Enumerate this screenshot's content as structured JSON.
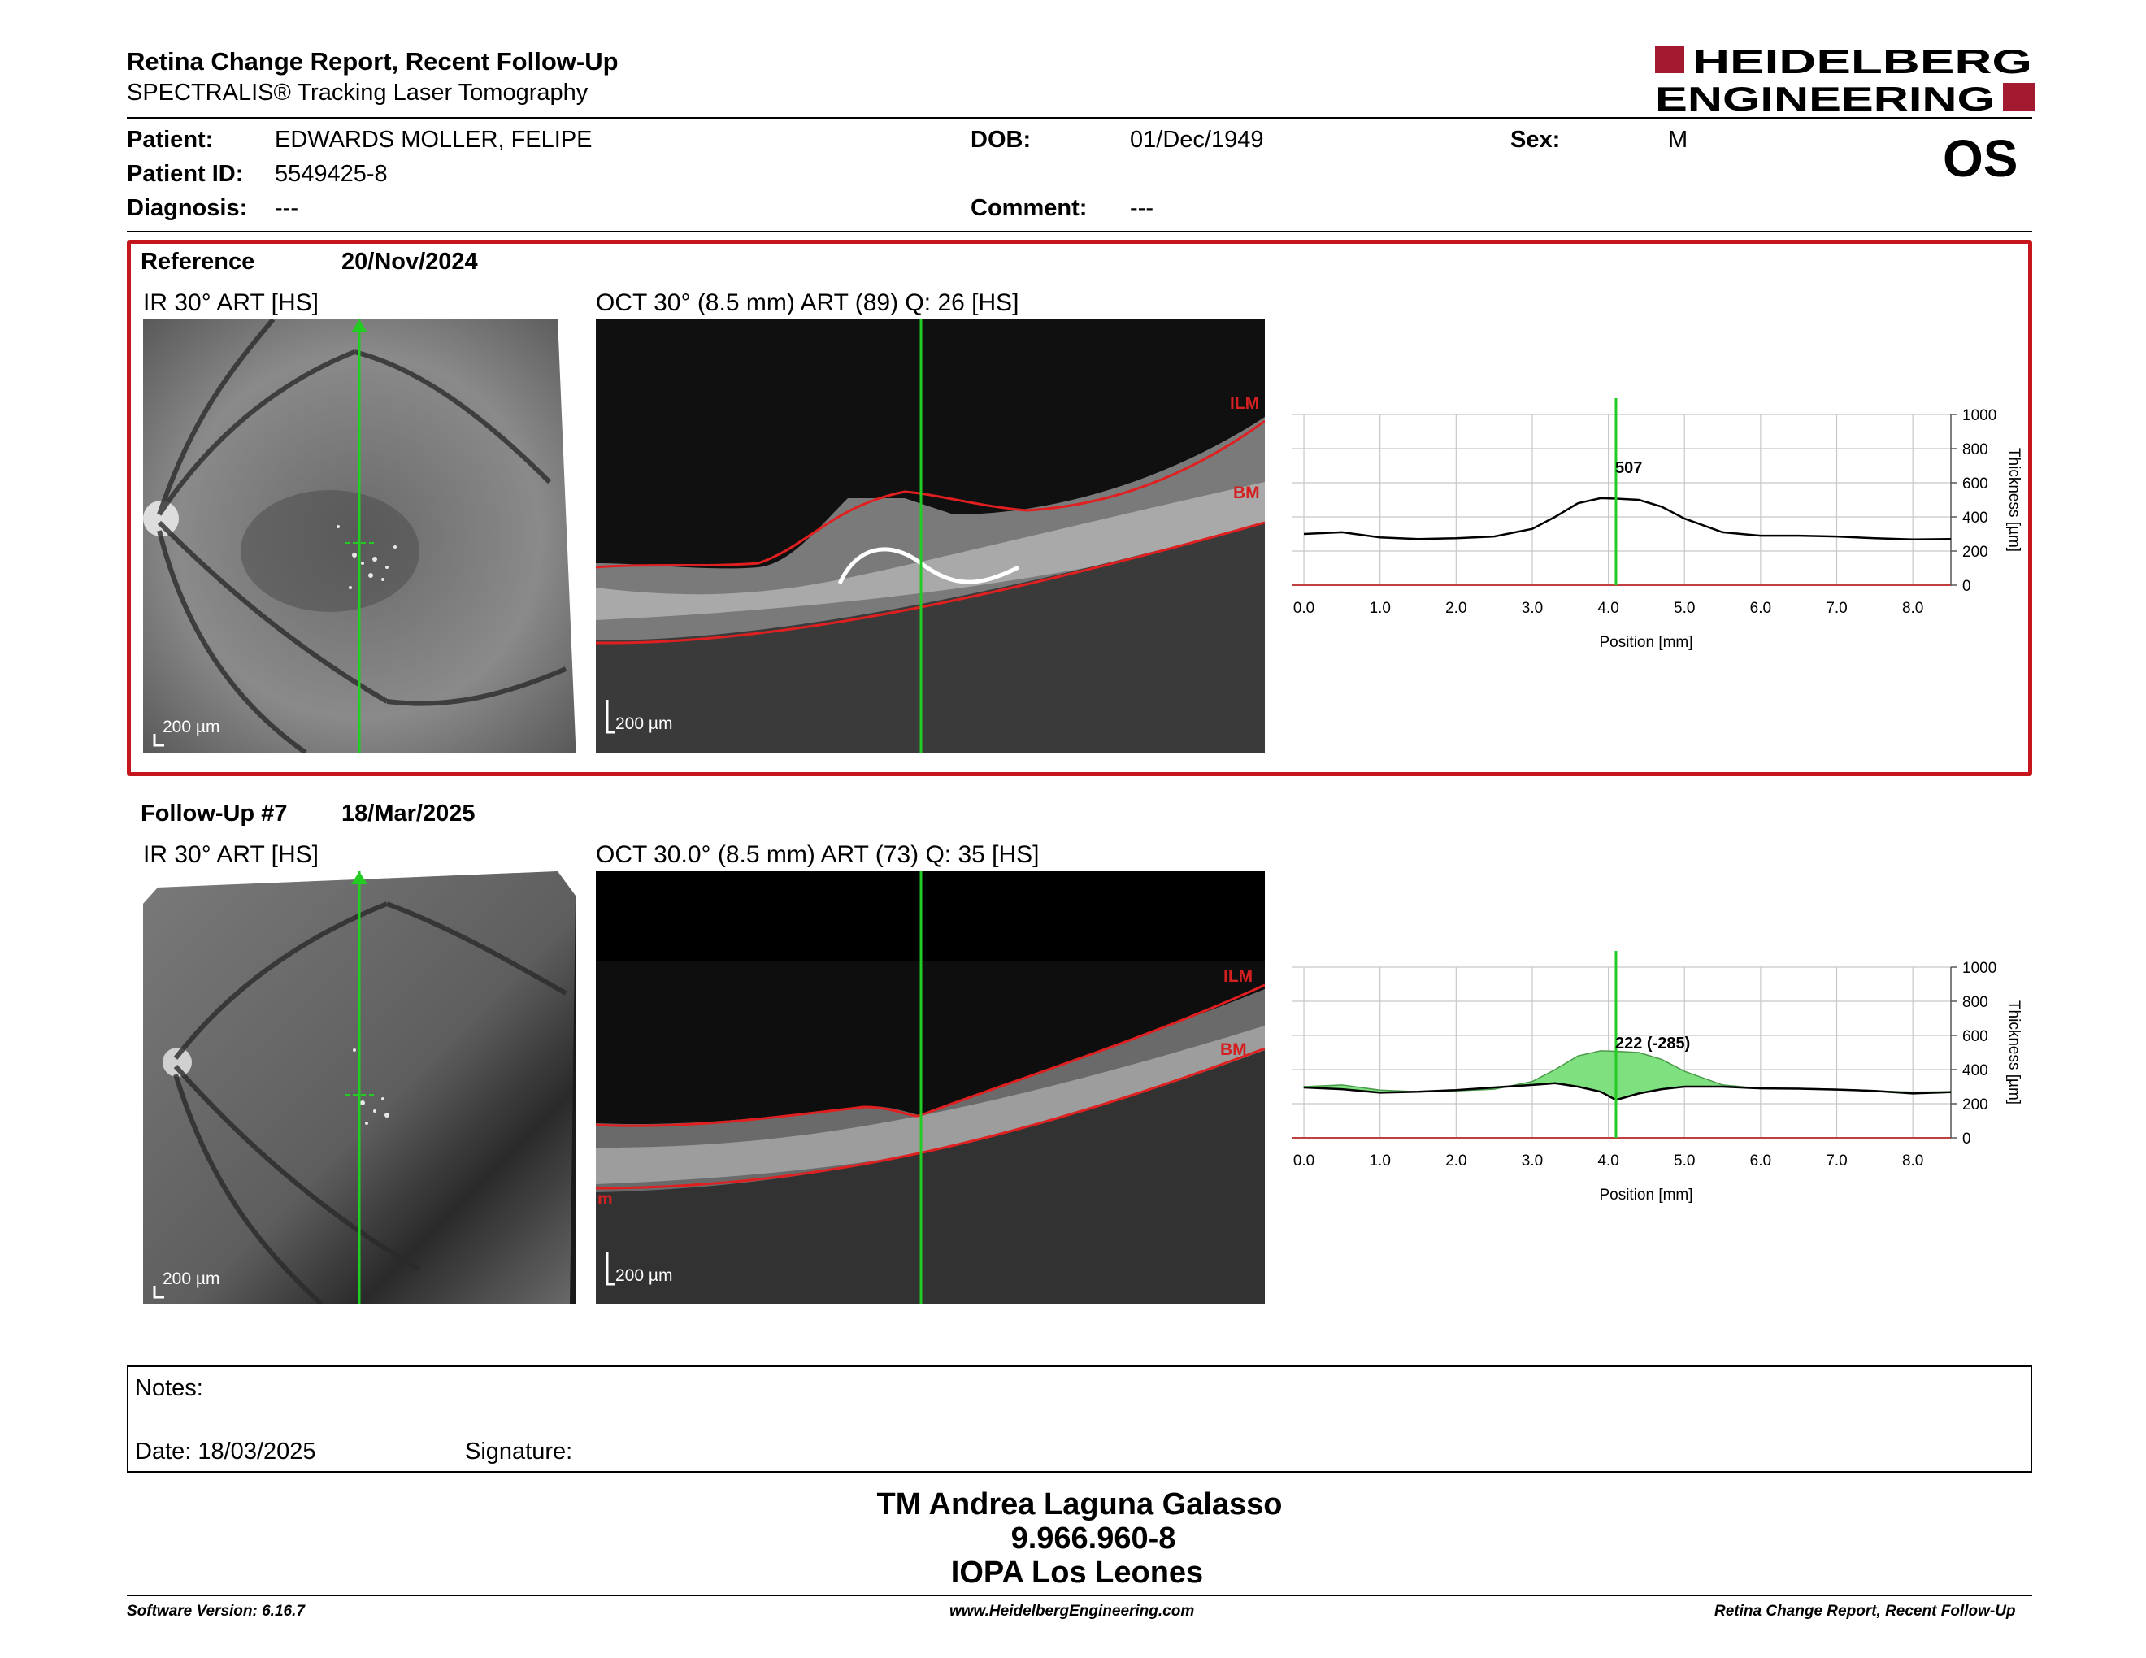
{
  "header": {
    "title": "Retina Change Report, Recent Follow-Up",
    "subtitle": "SPECTRALIS® Tracking Laser Tomography",
    "logo_line1": "HEIDELBERG",
    "logo_line2": "ENGINEERING",
    "eye": "OS"
  },
  "patient": {
    "name_label": "Patient:",
    "name": "EDWARDS MOLLER, FELIPE",
    "id_label": "Patient ID:",
    "id": "5549425-8",
    "diagnosis_label": "Diagnosis:",
    "diagnosis": "---",
    "dob_label": "DOB:",
    "dob": "01/Dec/1949",
    "comment_label": "Comment:",
    "comment": "---",
    "sex_label": "Sex:",
    "sex": "M"
  },
  "reference": {
    "label": "Reference",
    "date": "20/Nov/2024",
    "ir_caption": "IR 30° ART [HS]",
    "oct_caption": "OCT 30° (8.5 mm) ART (89) Q: 26 [HS]",
    "scale": "200 µm",
    "ilm": "ILM",
    "bm": "BM",
    "marker_label": "507"
  },
  "followup": {
    "label": "Follow-Up #7",
    "date": "18/Mar/2025",
    "ir_caption": "IR 30° ART [HS]",
    "oct_caption": "OCT 30.0° (8.5 mm) ART (73) Q: 35 [HS]",
    "scale": "200 µm",
    "ilm": "ILM",
    "bm": "BM",
    "edge_label": "m",
    "marker_label": "222 (-285)"
  },
  "chart_data": [
    {
      "type": "line",
      "x": [
        0.0,
        0.5,
        1.0,
        1.5,
        2.0,
        2.5,
        3.0,
        3.3,
        3.6,
        3.9,
        4.1,
        4.4,
        4.7,
        5.0,
        5.5,
        6.0,
        6.5,
        7.0,
        7.5,
        8.0,
        8.5
      ],
      "series": [
        {
          "values": [
            300,
            310,
            280,
            270,
            275,
            285,
            330,
            400,
            480,
            510,
            507,
            500,
            460,
            390,
            310,
            290,
            290,
            285,
            275,
            268,
            270
          ]
        }
      ],
      "marker_x": 4.1,
      "xlabel": "Position [mm]",
      "ylabel": "Thickness [µm]",
      "xticks": [
        "0.0",
        "1.0",
        "2.0",
        "3.0",
        "4.0",
        "5.0",
        "6.0",
        "7.0",
        "8.0"
      ],
      "yticks": [
        "0",
        "200",
        "400",
        "600",
        "800",
        "1000"
      ],
      "xlim": [
        -0.15,
        8.5
      ],
      "ylim": [
        0,
        1000
      ],
      "grid": true,
      "line_color": "#000000",
      "marker_color": "#22cc22"
    },
    {
      "type": "area",
      "x": [
        0.0,
        0.5,
        1.0,
        1.5,
        2.0,
        2.5,
        3.0,
        3.3,
        3.6,
        3.9,
        4.1,
        4.4,
        4.7,
        5.0,
        5.5,
        6.0,
        6.5,
        7.0,
        7.5,
        8.0,
        8.5
      ],
      "series": [
        {
          "values": [
            300,
            310,
            280,
            270,
            275,
            285,
            330,
            400,
            480,
            510,
            507,
            500,
            460,
            390,
            310,
            290,
            290,
            285,
            275,
            268,
            270
          ]
        },
        {
          "values": [
            295,
            285,
            265,
            270,
            280,
            295,
            310,
            320,
            300,
            270,
            222,
            260,
            285,
            300,
            300,
            290,
            288,
            283,
            275,
            260,
            268
          ]
        }
      ],
      "marker_x": 4.1,
      "xlabel": "Position [mm]",
      "ylabel": "Thickness [µm]",
      "xticks": [
        "0.0",
        "1.0",
        "2.0",
        "3.0",
        "4.0",
        "5.0",
        "6.0",
        "7.0",
        "8.0"
      ],
      "yticks": [
        "0",
        "200",
        "400",
        "600",
        "800",
        "1000"
      ],
      "xlim": [
        -0.15,
        8.5
      ],
      "ylim": [
        0,
        1000
      ],
      "grid": true,
      "fill_color": "#7ee07e",
      "marker_color": "#22cc22"
    }
  ],
  "notes": {
    "label": "Notes:",
    "date_label": "Date: 18/03/2025",
    "signature_label": "Signature:"
  },
  "signature": {
    "name": "TM Andrea Laguna Galasso",
    "id": "9.966.960-8",
    "institution": "IOPA Los Leones"
  },
  "footer": {
    "software": "Software Version: 6.16.7",
    "url": "www.HeidelbergEngineering.com",
    "report": "Retina Change Report, Recent Follow-Up"
  },
  "colors": {
    "brand_red": "#a3192f",
    "frame_red": "#c4161c",
    "scan_line": "#22cc22",
    "segmentation": "#d42020"
  }
}
